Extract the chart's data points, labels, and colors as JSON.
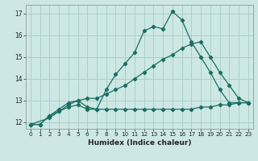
{
  "xlabel": "Humidex (Indice chaleur)",
  "background_color": "#cde8e4",
  "grid_color": "#aacfcb",
  "line_color": "#1a6e62",
  "xlim": [
    -0.5,
    23.5
  ],
  "ylim": [
    11.7,
    17.4
  ],
  "yticks": [
    12,
    13,
    14,
    15,
    16,
    17
  ],
  "xticks": [
    0,
    1,
    2,
    3,
    4,
    5,
    6,
    7,
    8,
    9,
    10,
    11,
    12,
    13,
    14,
    15,
    16,
    17,
    18,
    19,
    20,
    21,
    22,
    23
  ],
  "series1_x": [
    0,
    1,
    2,
    3,
    4,
    5,
    6,
    7,
    8,
    9,
    10,
    11,
    12,
    13,
    14,
    15,
    16,
    17,
    18,
    19,
    20,
    21,
    22,
    23
  ],
  "series1_y": [
    11.9,
    11.9,
    12.3,
    12.6,
    12.9,
    13.0,
    12.7,
    12.6,
    13.5,
    14.2,
    14.7,
    15.2,
    16.2,
    16.4,
    16.3,
    17.1,
    16.7,
    15.7,
    15.0,
    14.3,
    13.5,
    12.9,
    12.9,
    12.9
  ],
  "series2_x": [
    0,
    2,
    3,
    4,
    5,
    6,
    7,
    8,
    9,
    10,
    11,
    12,
    13,
    14,
    15,
    16,
    17,
    18,
    19,
    20,
    21,
    22,
    23
  ],
  "series2_y": [
    11.9,
    12.2,
    12.5,
    12.8,
    13.0,
    13.1,
    13.1,
    13.3,
    13.5,
    13.7,
    14.0,
    14.3,
    14.6,
    14.9,
    15.1,
    15.4,
    15.6,
    15.7,
    15.0,
    14.3,
    13.7,
    13.1,
    12.9
  ],
  "series3_x": [
    0,
    1,
    2,
    3,
    4,
    5,
    6,
    7,
    8,
    9,
    10,
    11,
    12,
    13,
    14,
    15,
    16,
    17,
    18,
    19,
    20,
    21,
    22,
    23
  ],
  "series3_y": [
    11.9,
    11.9,
    12.3,
    12.5,
    12.7,
    12.8,
    12.6,
    12.6,
    12.6,
    12.6,
    12.6,
    12.6,
    12.6,
    12.6,
    12.6,
    12.6,
    12.6,
    12.6,
    12.7,
    12.7,
    12.8,
    12.8,
    12.9,
    12.9
  ]
}
